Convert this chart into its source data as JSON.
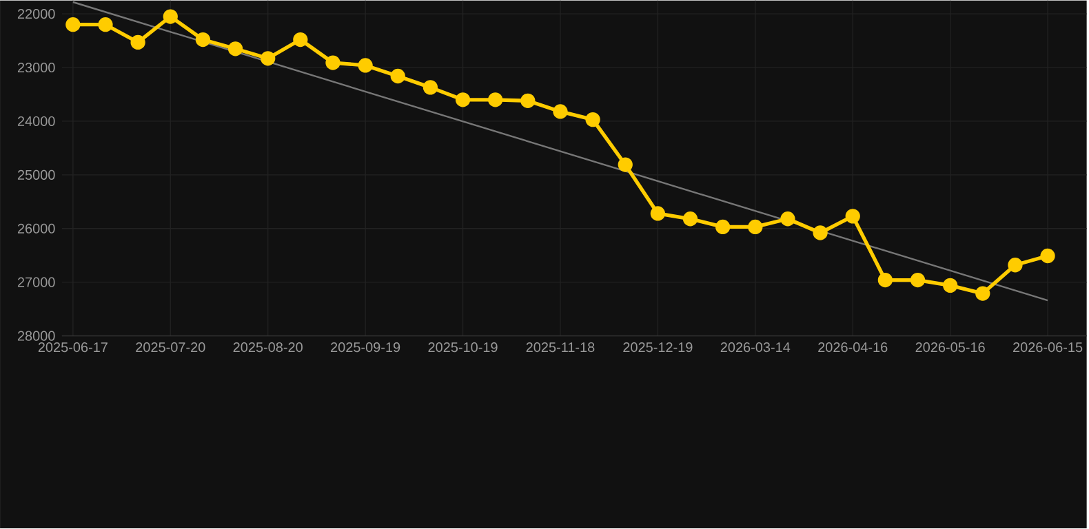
{
  "chart_data": {
    "type": "line",
    "categories": [
      "2025-06-17",
      null,
      null,
      "2025-07-20",
      null,
      null,
      "2025-08-20",
      null,
      null,
      "2025-09-19",
      null,
      null,
      "2025-10-19",
      null,
      null,
      "2025-11-18",
      null,
      null,
      "2025-12-19",
      null,
      null,
      "2026-03-14",
      null,
      null,
      "2026-04-16",
      null,
      null,
      "2026-05-16",
      null,
      null,
      "2026-06-15"
    ],
    "series": [
      {
        "color": "#ffcc00",
        "values": [
          22200,
          22200,
          22530,
          22050,
          22480,
          22650,
          22830,
          22480,
          22910,
          22960,
          23160,
          23370,
          23600,
          23600,
          23620,
          23820,
          23970,
          24810,
          25720,
          25820,
          25970,
          25970,
          25820,
          26080,
          25770,
          26960,
          26960,
          27060,
          27210,
          26680,
          26510
        ]
      },
      {
        "type": "line",
        "color": "#777777",
        "marker": "none",
        "values": [
          21780,
          null,
          null,
          null,
          null,
          null,
          null,
          null,
          null,
          null,
          null,
          null,
          null,
          null,
          null,
          null,
          null,
          null,
          null,
          null,
          null,
          null,
          null,
          null,
          null,
          null,
          null,
          null,
          null,
          null,
          27340
        ]
      }
    ],
    "ylim": [
      28000,
      21750
    ],
    "yticks": [
      22000,
      23000,
      24000,
      25000,
      26000,
      27000,
      28000
    ],
    "grid": true,
    "marker": "circle",
    "line_style": "solid"
  }
}
